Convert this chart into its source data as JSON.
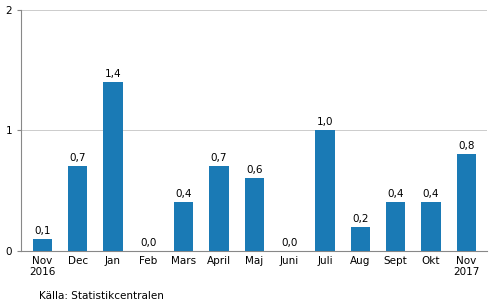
{
  "categories": [
    "Nov\n2016",
    "Dec",
    "Jan",
    "Feb",
    "Mars",
    "April",
    "Maj",
    "Juni",
    "Juli",
    "Aug",
    "Sept",
    "Okt",
    "Nov\n2017"
  ],
  "values": [
    0.1,
    0.7,
    1.4,
    0.0,
    0.4,
    0.7,
    0.6,
    0.0,
    1.0,
    0.2,
    0.4,
    0.4,
    0.8
  ],
  "bar_color": "#1a7ab5",
  "ylim": [
    0,
    2
  ],
  "yticks": [
    0,
    1,
    2
  ],
  "source_text": "Källa: Statistikcentralen",
  "value_labels": [
    "0,1",
    "0,7",
    "1,4",
    "0,0",
    "0,4",
    "0,7",
    "0,6",
    "0,0",
    "1,0",
    "0,2",
    "0,4",
    "0,4",
    "0,8"
  ],
  "background_color": "#ffffff",
  "grid_color": "#cccccc",
  "label_fontsize": 7.5,
  "tick_fontsize": 7.5,
  "source_fontsize": 7.5,
  "bar_width": 0.55
}
